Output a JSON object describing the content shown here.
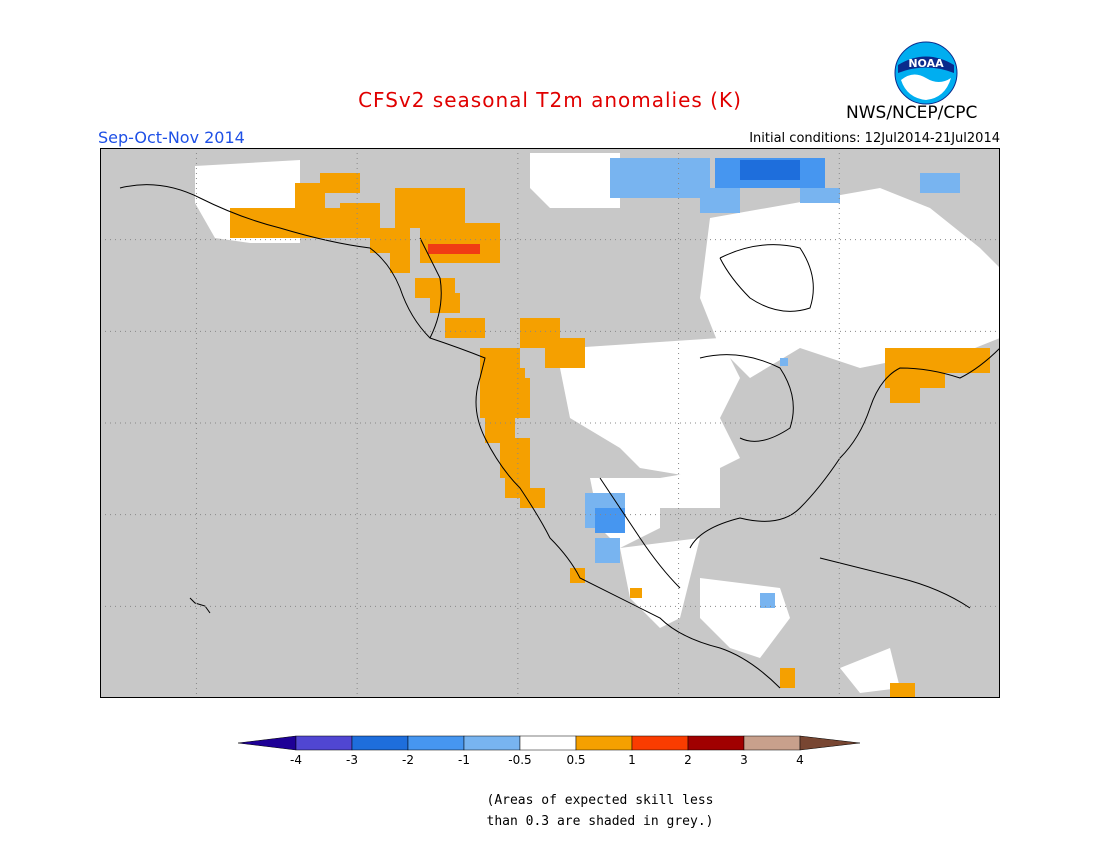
{
  "header": {
    "title": "CFSv2 seasonal T2m anomalies (K)",
    "season": "Sep-Oct-Nov 2014",
    "initial_conditions": "Initial conditions: 12Jul2014-21Jul2014",
    "agency": "NWS/NCEP/CPC",
    "logo_text": "NOAA"
  },
  "map": {
    "lon_range": [
      -172,
      -60
    ],
    "lat_range": [
      10,
      70
    ],
    "y_ticks": [
      "70N",
      "60N",
      "50N",
      "40N",
      "30N",
      "20N",
      "10N"
    ],
    "x_ticks": [
      "160W",
      "140W",
      "120W",
      "100W",
      "80W",
      "60W"
    ],
    "colors": {
      "grey_low_skill": "#c8c8c8",
      "ocean_shading": "#c8c8c8",
      "neutral": "#ffffff",
      "warm_1": "#f5a000",
      "warm_2": "#f03c14",
      "cool_1": "#78b4f0",
      "cool_2": "#4696f0",
      "cool_3": "#1e6edc"
    }
  },
  "colorbar": {
    "labels": [
      "-4",
      "-3",
      "-2",
      "-1",
      "-0.5",
      "0.5",
      "1",
      "2",
      "3",
      "4"
    ],
    "colors": [
      "#1e0096",
      "#5046d2",
      "#1e6edc",
      "#4696f0",
      "#78b4f0",
      "#ffffff",
      "#f5a000",
      "#fa3c00",
      "#a00000",
      "#c8a08c",
      "#784632"
    ]
  },
  "note": {
    "line1": "(Areas of expected skill less",
    "line2": "than 0.3 are shaded in grey.)"
  }
}
